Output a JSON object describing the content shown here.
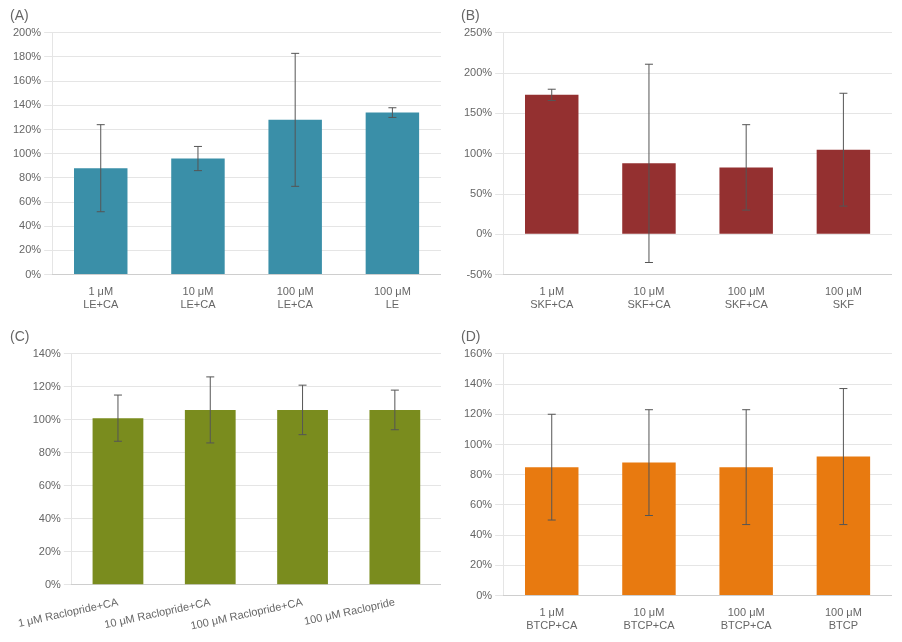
{
  "chart_data": [
    {
      "type": "bar",
      "title": "(A)",
      "color": "#3a8fa8",
      "categories": [
        "1 μM\nLE+CA",
        "10 μM\nLE+CA",
        "100 μM\nLE+CA",
        "100 μM\nLE"
      ],
      "values": [
        0.88,
        0.96,
        1.28,
        1.34
      ],
      "errors": [
        0.36,
        0.1,
        0.55,
        0.04
      ],
      "ylim": [
        0,
        2.0
      ],
      "yticks": [
        {
          "value": 0.0,
          "label": "0%"
        },
        {
          "value": 0.2,
          "label": "20%"
        },
        {
          "value": 0.4,
          "label": "40%"
        },
        {
          "value": 0.6,
          "label": "60%"
        },
        {
          "value": 0.8,
          "label": "80%"
        },
        {
          "value": 1.0,
          "label": "100%"
        },
        {
          "value": 1.2,
          "label": "120%"
        },
        {
          "value": 1.4,
          "label": "140%"
        },
        {
          "value": 1.6,
          "label": "160%"
        },
        {
          "value": 1.8,
          "label": "180%"
        },
        {
          "value": 2.0,
          "label": "200%"
        }
      ],
      "grid": true
    },
    {
      "type": "bar",
      "title": "(B)",
      "color": "#943030",
      "categories": [
        "1 μM\nSKF+CA",
        "10 μM\nSKF+CA",
        "100 μM\nSKF+CA",
        "100 μM\nSKF"
      ],
      "values": [
        1.73,
        0.88,
        0.83,
        1.05
      ],
      "errors": [
        0.07,
        1.23,
        0.53,
        0.7
      ],
      "ylim": [
        -0.5,
        2.5
      ],
      "yticks": [
        {
          "value": -0.5,
          "label": "-50%"
        },
        {
          "value": 0.0,
          "label": "0%"
        },
        {
          "value": 0.5,
          "label": "50%"
        },
        {
          "value": 1.0,
          "label": "100%"
        },
        {
          "value": 1.5,
          "label": "150%"
        },
        {
          "value": 2.0,
          "label": "200%"
        },
        {
          "value": 2.5,
          "label": "250%"
        }
      ],
      "grid": true
    },
    {
      "type": "bar",
      "title": "(C)",
      "color": "#7a8c1e",
      "categories": [
        "1 μM Raclopride+CA",
        "10 μM Raclopride+CA",
        "100 μM Raclopride+CA",
        "100 μM Raclopride"
      ],
      "values": [
        1.01,
        1.06,
        1.06,
        1.06
      ],
      "errors": [
        0.14,
        0.2,
        0.15,
        0.12
      ],
      "ylim": [
        0,
        1.4
      ],
      "yticks": [
        {
          "value": 0.0,
          "label": "0%"
        },
        {
          "value": 0.2,
          "label": "20%"
        },
        {
          "value": 0.4,
          "label": "40%"
        },
        {
          "value": 0.6,
          "label": "60%"
        },
        {
          "value": 0.8,
          "label": "80%"
        },
        {
          "value": 1.0,
          "label": "100%"
        },
        {
          "value": 1.2,
          "label": "120%"
        },
        {
          "value": 1.4,
          "label": "140%"
        }
      ],
      "grid": true
    },
    {
      "type": "bar",
      "title": "(D)",
      "color": "#e87a10",
      "categories": [
        "1 μM\nBTCP+CA",
        "10 μM\nBTCP+CA",
        "100 μM\nBTCP+CA",
        "100 μM\nBTCP"
      ],
      "values": [
        0.85,
        0.88,
        0.85,
        0.92
      ],
      "errors": [
        0.35,
        0.35,
        0.38,
        0.45
      ],
      "ylim": [
        0,
        1.6
      ],
      "yticks": [
        {
          "value": 0.0,
          "label": "0%"
        },
        {
          "value": 0.2,
          "label": "20%"
        },
        {
          "value": 0.4,
          "label": "40%"
        },
        {
          "value": 0.6,
          "label": "60%"
        },
        {
          "value": 0.8,
          "label": "80%"
        },
        {
          "value": 1.0,
          "label": "100%"
        },
        {
          "value": 1.2,
          "label": "120%"
        },
        {
          "value": 1.4,
          "label": "140%"
        },
        {
          "value": 1.6,
          "label": "160%"
        }
      ],
      "grid": true
    }
  ]
}
